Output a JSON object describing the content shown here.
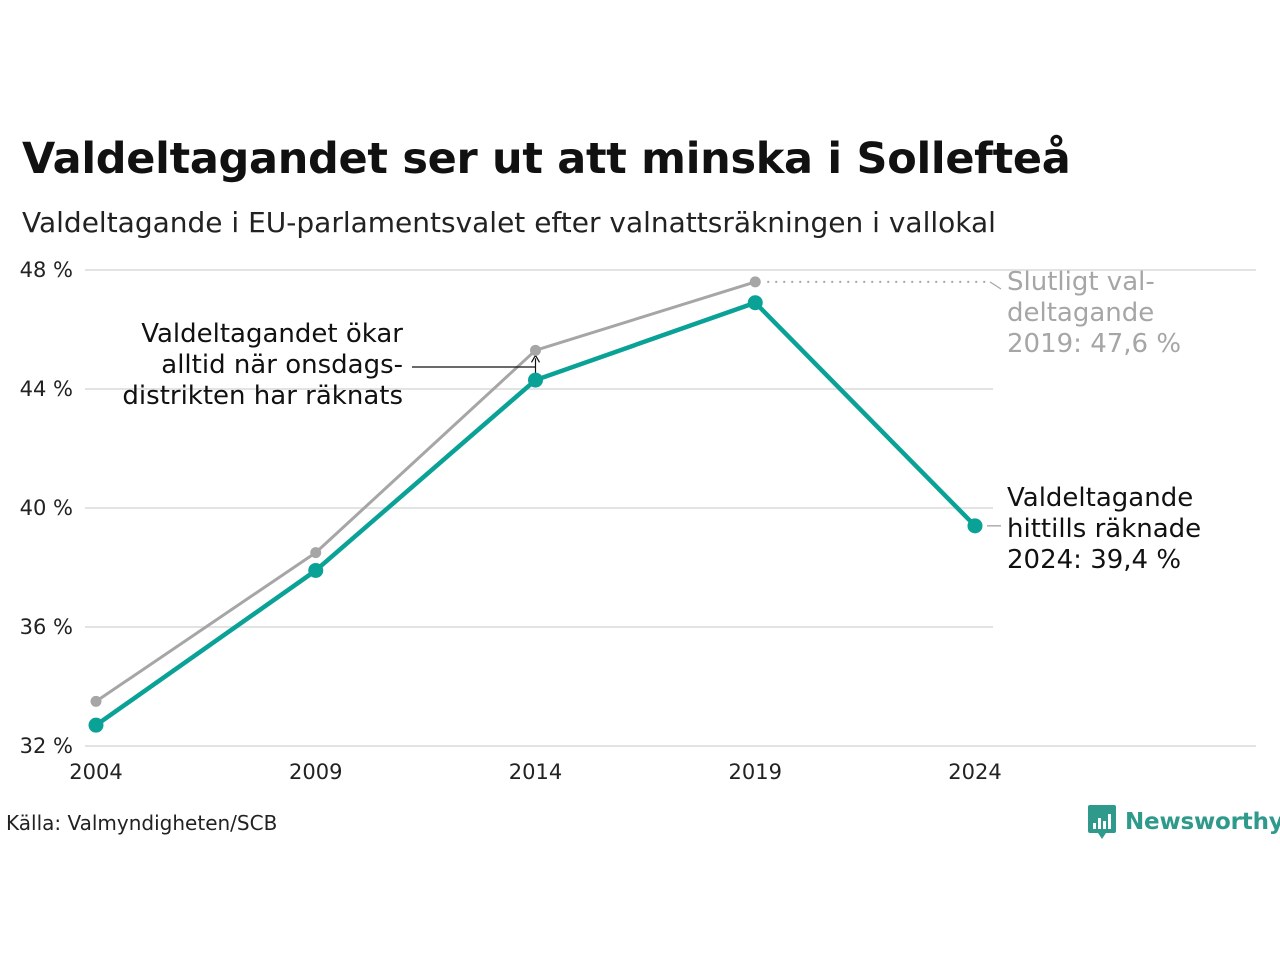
{
  "header": {
    "title": "Valdeltagandet ser ut att minska i Sollefteå",
    "subtitle": "Valdeltagande i EU-parlamentsvalet efter valnattsräkningen i vallokal"
  },
  "footer": {
    "source": "Källa: Valmyndigheten/SCB",
    "brand": "Newsworthy"
  },
  "colors": {
    "counted": "#0aa296",
    "final": "#a6a6a6",
    "grid": "#e3e3e3",
    "annotation_dark": "#111111",
    "annotation_grey": "#a6a6a6",
    "brand": "#2f9a8c"
  },
  "chart_data": {
    "type": "line",
    "x": [
      2004,
      2009,
      2014,
      2019,
      2024
    ],
    "xtick_labels": [
      "2004",
      "2009",
      "2014",
      "2019",
      "2024"
    ],
    "ylim": [
      32,
      48
    ],
    "yticks": [
      32,
      36,
      40,
      44,
      48
    ],
    "ytick_labels": [
      "32 %",
      "36 %",
      "40 %",
      "44 %",
      "48 %"
    ],
    "grid": true,
    "series": [
      {
        "key": "final",
        "values": [
          33.5,
          38.5,
          45.3,
          47.6,
          null
        ]
      },
      {
        "key": "counted",
        "values": [
          32.7,
          37.9,
          44.3,
          46.9,
          39.4
        ]
      }
    ],
    "annotations": {
      "wednesday": [
        "Valdeltagandet ökar",
        "alltid när onsdags-",
        "distrikten har räknats"
      ],
      "final_2019": [
        "Slutligt val-",
        "deltagande",
        "2019: 47,6 %"
      ],
      "counted_2024": [
        "Valdeltagande",
        "hittills räknade",
        "2024: 39,4 %"
      ]
    }
  }
}
